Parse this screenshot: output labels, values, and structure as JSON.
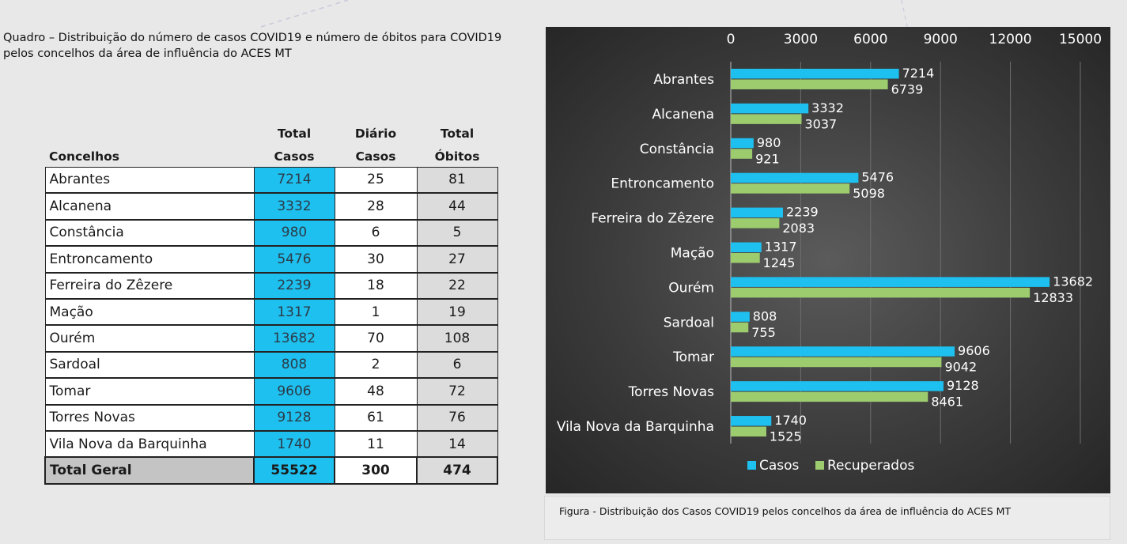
{
  "quadro_caption": {
    "line1": "Quadro – Distribuição do número de casos COVID19 e número de óbitos para COVID19",
    "line2": "pelos concelhos da área de influência do ACES MT"
  },
  "table": {
    "header_row1": [
      "",
      "Total",
      "Diário",
      "Total"
    ],
    "header_row2": [
      "Concelhos",
      "Casos",
      "Casos",
      "Óbitos"
    ],
    "rows": [
      {
        "concelho": "Abrantes",
        "total_casos": "7214",
        "diario_casos": "25",
        "total_obitos": "81"
      },
      {
        "concelho": "Alcanena",
        "total_casos": "3332",
        "diario_casos": "28",
        "total_obitos": "44"
      },
      {
        "concelho": "Constância",
        "total_casos": "980",
        "diario_casos": "6",
        "total_obitos": "5"
      },
      {
        "concelho": "Entroncamento",
        "total_casos": "5476",
        "diario_casos": "30",
        "total_obitos": "27"
      },
      {
        "concelho": "Ferreira do Zêzere",
        "total_casos": "2239",
        "diario_casos": "18",
        "total_obitos": "22"
      },
      {
        "concelho": "Mação",
        "total_casos": "1317",
        "diario_casos": "1",
        "total_obitos": "19"
      },
      {
        "concelho": "Ourém",
        "total_casos": "13682",
        "diario_casos": "70",
        "total_obitos": "108"
      },
      {
        "concelho": "Sardoal",
        "total_casos": "808",
        "diario_casos": "2",
        "total_obitos": "6"
      },
      {
        "concelho": "Tomar",
        "total_casos": "9606",
        "diario_casos": "48",
        "total_obitos": "72"
      },
      {
        "concelho": "Torres Novas",
        "total_casos": "9128",
        "diario_casos": "61",
        "total_obitos": "76"
      },
      {
        "concelho": "Vila Nova da Barquinha",
        "total_casos": "1740",
        "diario_casos": "11",
        "total_obitos": "14"
      }
    ],
    "total": {
      "label": "Total Geral",
      "total_casos": "55522",
      "diario_casos": "300",
      "total_obitos": "474"
    }
  },
  "chart_data": {
    "type": "bar",
    "orientation": "horizontal",
    "categories": [
      "Abrantes",
      "Alcanena",
      "Constância",
      "Entroncamento",
      "Ferreira do Zêzere",
      "Mação",
      "Ourém",
      "Sardoal",
      "Tomar",
      "Torres Novas",
      "Vila Nova da Barquinha"
    ],
    "series": [
      {
        "name": "Casos",
        "values": [
          7214,
          3332,
          980,
          5476,
          2239,
          1317,
          13682,
          808,
          9606,
          9128,
          1740
        ],
        "color": "#1ec0ef"
      },
      {
        "name": "Recuperados",
        "values": [
          6739,
          3037,
          921,
          5098,
          2083,
          1245,
          12833,
          755,
          9042,
          8461,
          1525
        ],
        "color": "#9dcc6f"
      }
    ],
    "x_ticks": [
      0,
      3000,
      6000,
      9000,
      12000,
      15000
    ],
    "xlim": [
      0,
      15000
    ],
    "x_axis_position": "top",
    "grid": true,
    "legend_position": "bottom",
    "data_labels": true,
    "background": "#3c3c3c",
    "title": "",
    "xlabel": "",
    "ylabel": ""
  },
  "figure_caption": "Figura -  Distribuição dos Casos COVID19 pelos concelhos da área de influência do ACES MT"
}
